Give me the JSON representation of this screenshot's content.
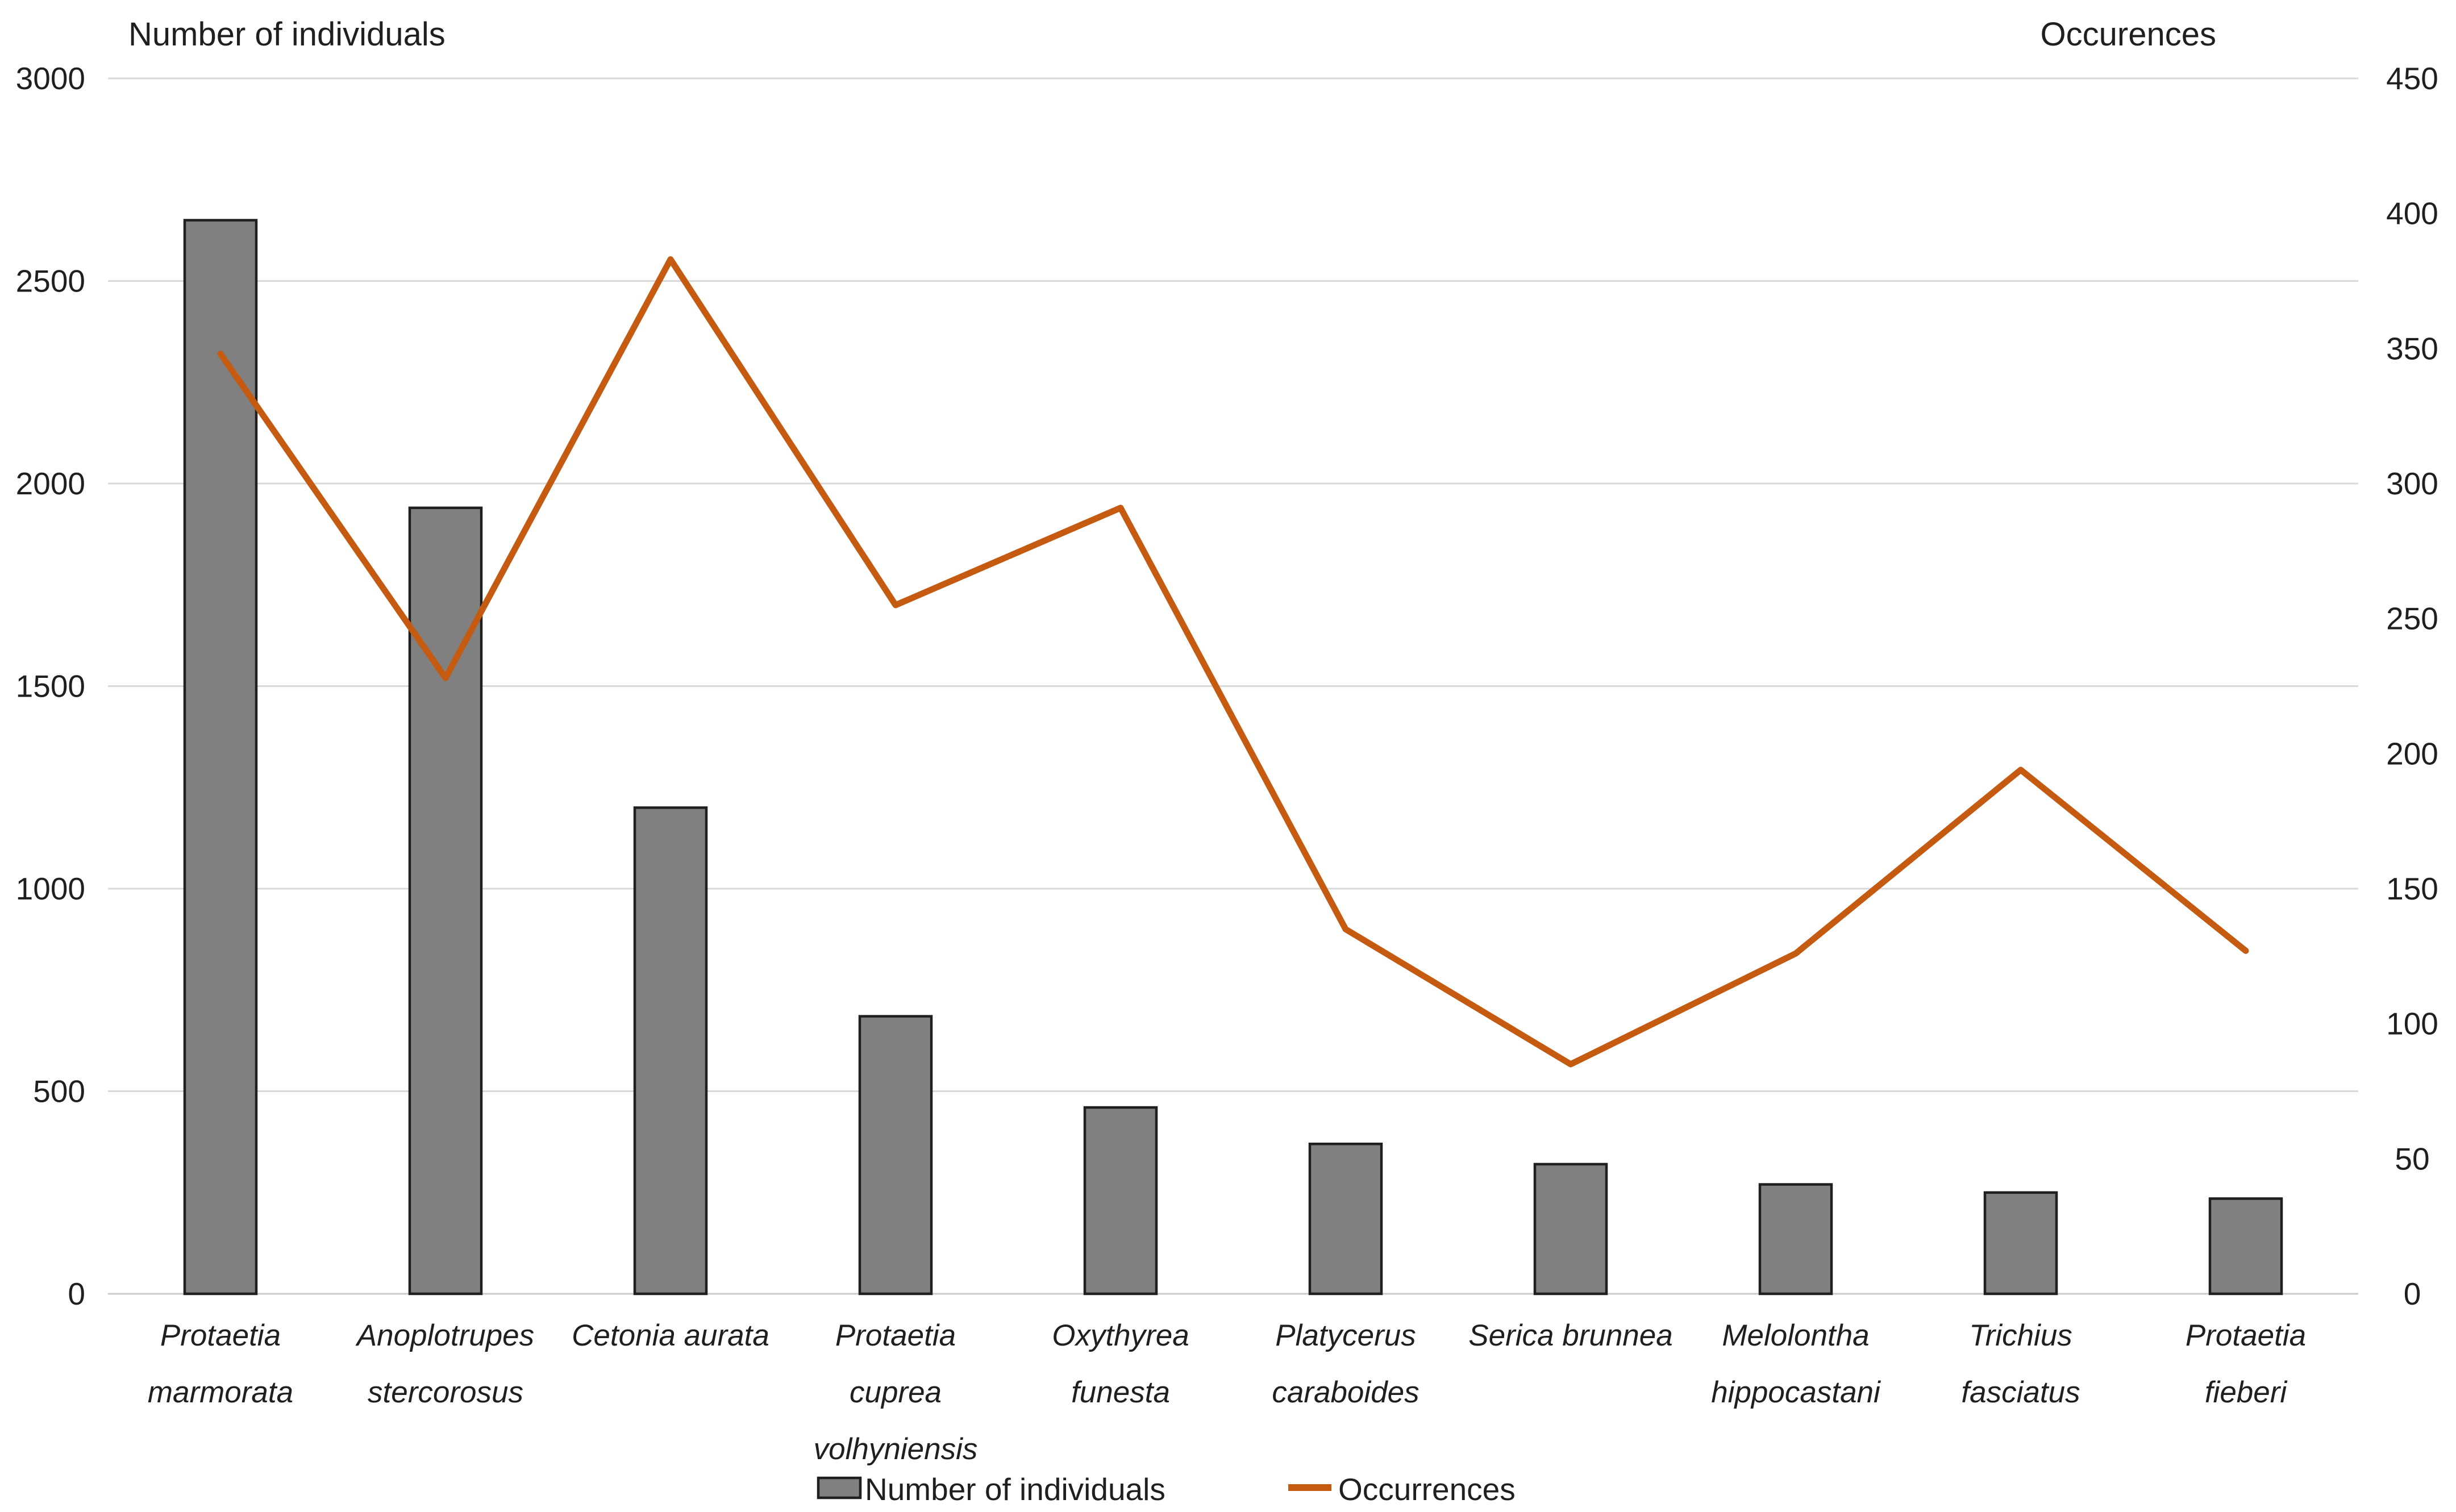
{
  "titles": {
    "left": "Number of individuals",
    "right": "Occurences"
  },
  "legend": {
    "items": [
      {
        "label": "Number of individuals",
        "marker": "bar-swatch-icon"
      },
      {
        "label": "Occurrences",
        "marker": "line-swatch-icon"
      }
    ]
  },
  "colors": {
    "bar_fill": "#808080",
    "bar_border": "#1f1f1f",
    "line": "#c55a11",
    "gridline": "#d9d9d9",
    "axis_line": "#c9c9c9",
    "text": "#1f1f1f"
  },
  "chart_data": {
    "type": "bar",
    "subtype": "combo-bar-line-dual-axis",
    "title": "",
    "xlabel": "",
    "ylabel_left": "Number of individuals",
    "ylabel_right": "Occurences",
    "grid": true,
    "legend_position": "bottom",
    "categories": [
      "Protaetia marmorata",
      "Anoplotrupes stercorosus",
      "Cetonia aurata",
      "Protaetia cuprea volhyniensis",
      "Oxythyrea funesta",
      "Platycerus caraboides",
      "Serica brunnea",
      "Melolontha hippocastani",
      "Trichius fasciatus",
      "Protaetia fieberi"
    ],
    "category_lines": [
      [
        "Protaetia",
        "marmorata"
      ],
      [
        "Anoplotrupes",
        "stercorosus"
      ],
      [
        "Cetonia aurata"
      ],
      [
        "Protaetia",
        "cuprea",
        "volhyniensis"
      ],
      [
        "Oxythyrea",
        "funesta"
      ],
      [
        "Platycerus",
        "caraboides"
      ],
      [
        "Serica brunnea"
      ],
      [
        "Melolontha",
        "hippocastani"
      ],
      [
        "Trichius",
        "fasciatus"
      ],
      [
        "Protaetia",
        "fieberi"
      ]
    ],
    "series": [
      {
        "name": "Number of individuals",
        "type": "bar",
        "axis": "left",
        "values": [
          2650,
          1940,
          1200,
          685,
          460,
          370,
          320,
          270,
          250,
          235
        ]
      },
      {
        "name": "Occurrences",
        "type": "line",
        "axis": "right",
        "values": [
          348,
          228,
          383,
          255,
          291,
          135,
          85,
          126,
          194,
          127
        ]
      }
    ],
    "left_axis": {
      "min": 0,
      "max": 3000,
      "step": 500,
      "tick_labels": [
        "0",
        "500",
        "1000",
        "1500",
        "2000",
        "2500",
        "3000"
      ]
    },
    "right_axis": {
      "min": 0,
      "max": 450,
      "step": 50,
      "tick_labels": [
        "0",
        "50",
        "100",
        "150",
        "200",
        "250",
        "300",
        "350",
        "400",
        "450"
      ]
    }
  }
}
